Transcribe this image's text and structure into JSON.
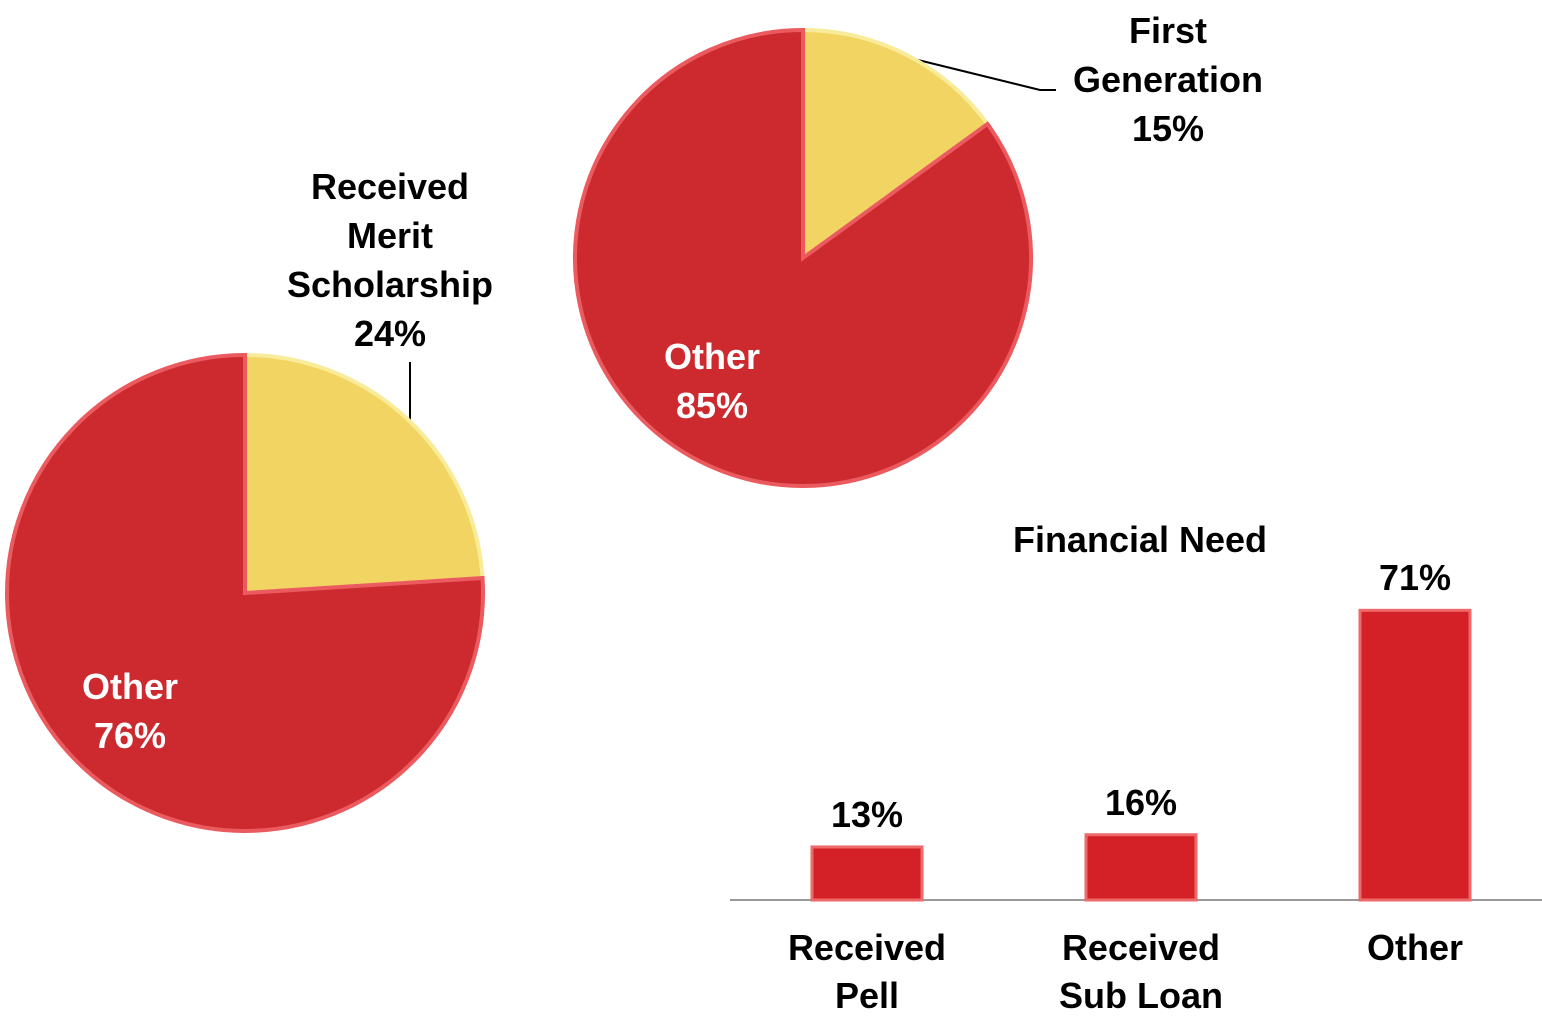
{
  "chart_data": [
    {
      "type": "pie",
      "categories": [
        "Received Merit Scholarship",
        "Other"
      ],
      "values": [
        24,
        76
      ],
      "value_labels": [
        "24%",
        "76%"
      ],
      "colors": [
        "#f2d462",
        "#cc2a2f"
      ]
    },
    {
      "type": "pie",
      "categories": [
        "First Generation",
        "Other"
      ],
      "values": [
        15,
        85
      ],
      "value_labels": [
        "15%",
        "85%"
      ],
      "colors": [
        "#f2d462",
        "#cc2a2f"
      ]
    },
    {
      "type": "bar",
      "title": "Financial Need",
      "categories": [
        "Received Pell",
        "Received Sub Loan",
        "Other"
      ],
      "values": [
        13,
        16,
        71
      ],
      "value_labels": [
        "13%",
        "16%",
        "71%"
      ],
      "color": "#d42128"
    }
  ]
}
